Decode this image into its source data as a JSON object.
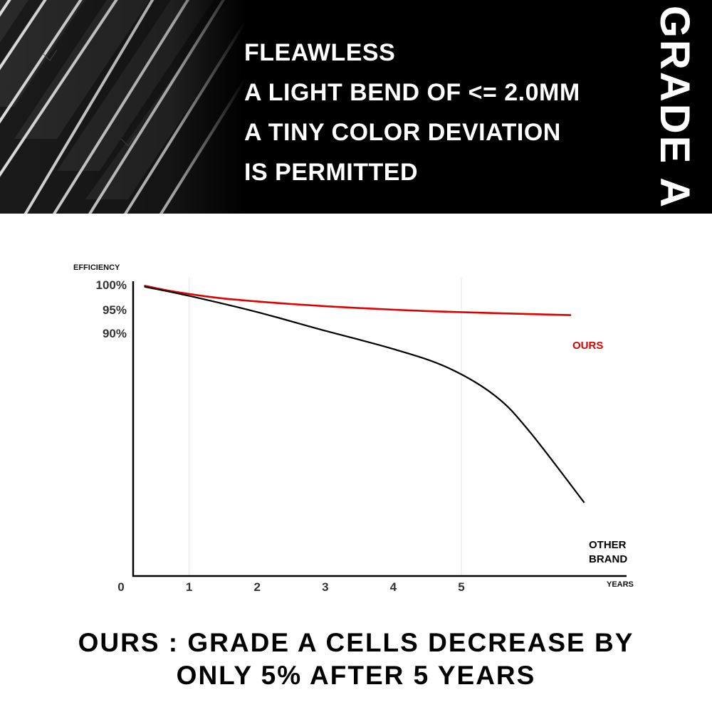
{
  "banner": {
    "features": [
      "FLEAWLESS",
      "A LIGHT BEND OF <= 2.0MM",
      "A TINY COLOR DEVIATION",
      "IS PERMITTED"
    ],
    "vertical_title": "GRADE A CELLS",
    "background_color": "#000000",
    "text_color": "#ffffff"
  },
  "chart_data": {
    "type": "line",
    "title": "",
    "ylabel": "EFFICIENCY",
    "xlabel": "YEARS",
    "x_ticks": [
      "0",
      "1",
      "2",
      "3",
      "4",
      "5"
    ],
    "y_ticks": [
      "100%",
      "95%",
      "90%"
    ],
    "xlim": [
      0,
      7
    ],
    "grid_years": [
      1,
      5
    ],
    "grid": false,
    "legend": "inline labels at line ends",
    "series": [
      {
        "name": "OURS",
        "color": "#e00000",
        "x": [
          0.35,
          0.8,
          1.5,
          2.5,
          3.5,
          4.5,
          5.5,
          6.6
        ],
        "y": [
          99.8,
          98.6,
          97.3,
          96.2,
          95.4,
          94.8,
          94.4,
          94.0
        ]
      },
      {
        "name": "OTHER BRAND",
        "color": "#000000",
        "x": [
          0.35,
          1.0,
          2.0,
          3.0,
          4.0,
          4.8,
          5.5,
          6.0,
          6.8
        ],
        "y": [
          99.6,
          97.8,
          94.6,
          90.9,
          87.3,
          83.6,
          78.0,
          71.0,
          57.0
        ]
      }
    ]
  },
  "caption": {
    "line1": "OURS : GRADE A CELLS DECREASE BY",
    "line2": "ONLY 5% AFTER 5 YEARS"
  }
}
